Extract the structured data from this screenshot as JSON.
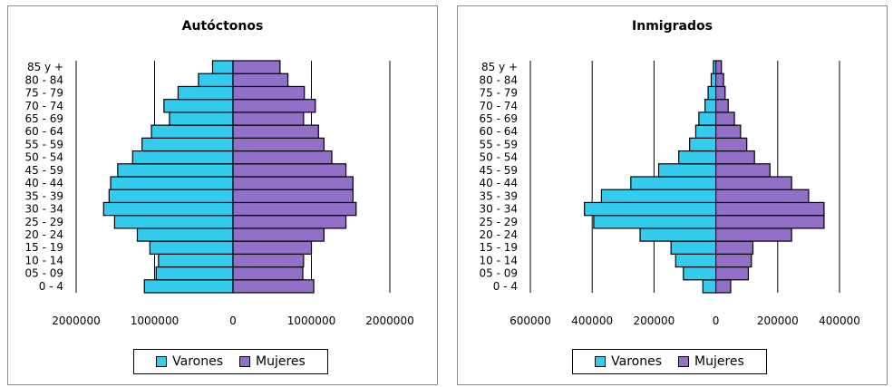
{
  "colors": {
    "varones": "#33CCEE",
    "mujeres": "#9370C8",
    "edge": "#000000",
    "grid": "#000000"
  },
  "chart_data": [
    {
      "type": "bar",
      "orientation": "horizontal-pyramid",
      "title": "Autóctonos",
      "categories": [
        "0 - 4",
        "05 - 09",
        "10 - 14",
        "15 - 19",
        "20 - 24",
        "25 - 29",
        "30 - 34",
        "35 - 39",
        "40 - 44",
        "45 - 59",
        "50 - 54",
        "55 - 59",
        "60 - 64",
        "65 - 69",
        "70 - 74",
        "75 - 79",
        "80 - 84",
        "85 y +"
      ],
      "series": [
        {
          "name": "Varones",
          "values": [
            1130000,
            980000,
            950000,
            1060000,
            1220000,
            1510000,
            1650000,
            1580000,
            1560000,
            1470000,
            1280000,
            1160000,
            1040000,
            810000,
            880000,
            700000,
            440000,
            260000
          ]
        },
        {
          "name": "Mujeres",
          "values": [
            1030000,
            890000,
            900000,
            1000000,
            1160000,
            1440000,
            1570000,
            1530000,
            1530000,
            1440000,
            1260000,
            1160000,
            1090000,
            900000,
            1050000,
            910000,
            700000,
            600000
          ]
        }
      ],
      "xlim": [
        -2000000,
        2000000
      ],
      "xticks": [
        "2000000",
        "1000000",
        "0",
        "1000000",
        "2000000"
      ],
      "legend": [
        "Varones",
        "Mujeres"
      ],
      "legend_position": "bottom"
    },
    {
      "type": "bar",
      "orientation": "horizontal-pyramid",
      "title": "Inmigrados",
      "categories": [
        "0 - 4",
        "05 - 09",
        "10 - 14",
        "15 - 19",
        "20 - 24",
        "25 - 29",
        "30 - 34",
        "35 - 39",
        "40 - 44",
        "45 - 59",
        "50 - 54",
        "55 - 59",
        "60 - 64",
        "65 - 69",
        "70 - 74",
        "75 - 79",
        "80 - 84",
        "85 y +"
      ],
      "series": [
        {
          "name": "Varones",
          "values": [
            42000,
            105000,
            130000,
            145000,
            245000,
            395000,
            425000,
            370000,
            275000,
            185000,
            120000,
            85000,
            65000,
            55000,
            35000,
            25000,
            15000,
            8000
          ]
        },
        {
          "name": "Mujeres",
          "values": [
            48000,
            105000,
            115000,
            120000,
            245000,
            350000,
            350000,
            300000,
            245000,
            175000,
            125000,
            100000,
            80000,
            60000,
            40000,
            30000,
            25000,
            18000
          ]
        }
      ],
      "xlim": [
        -600000,
        400000
      ],
      "xticks": [
        "600000",
        "400000",
        "200000",
        "0",
        "200000",
        "400000"
      ],
      "legend": [
        "Varones",
        "Mujeres"
      ],
      "legend_position": "bottom"
    }
  ]
}
